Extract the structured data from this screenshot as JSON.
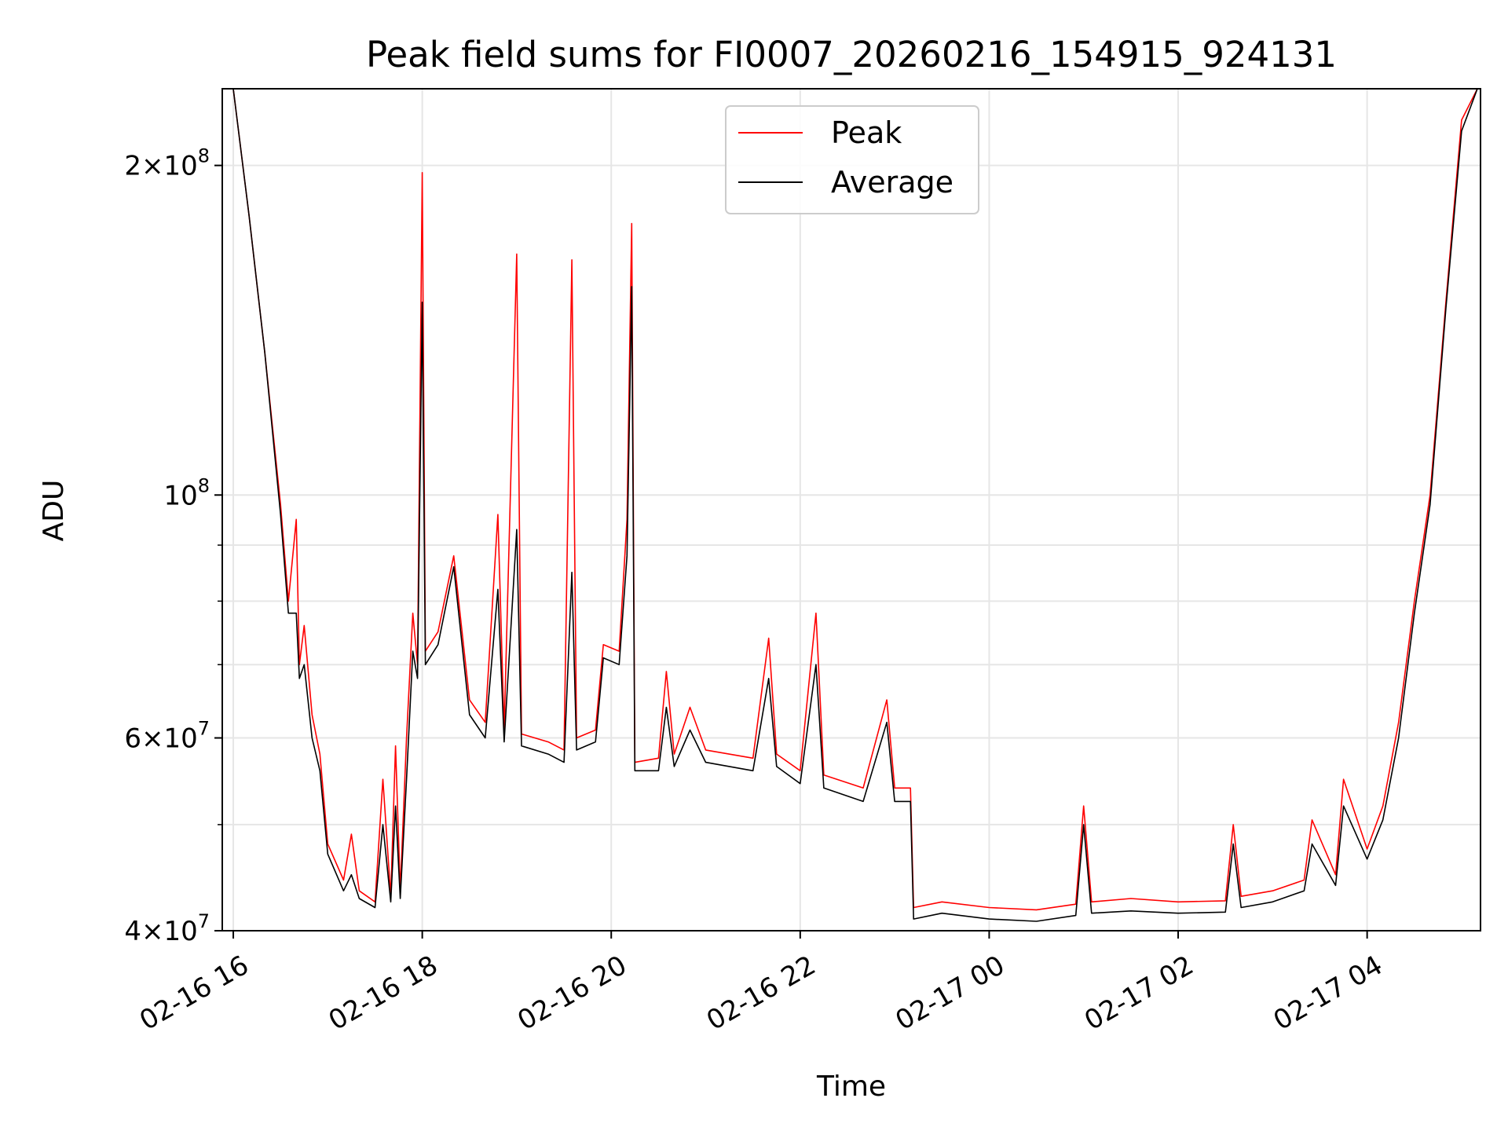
{
  "chart_data": {
    "type": "line",
    "title": "Peak field sums for FI0007_20260216_154915_924131",
    "xlabel": "Time",
    "ylabel": "ADU",
    "yscale": "log",
    "ylim": [
      40000000,
      235000000
    ],
    "xlim": [
      "2026-02-16 15:53",
      "2026-02-17 05:12"
    ],
    "grid": true,
    "legend_position": "top-center",
    "x_ticks": [
      {
        "x": "2026-02-16 16:00",
        "label": "02-16 16"
      },
      {
        "x": "2026-02-16 18:00",
        "label": "02-16 18"
      },
      {
        "x": "2026-02-16 20:00",
        "label": "02-16 20"
      },
      {
        "x": "2026-02-16 22:00",
        "label": "02-16 22"
      },
      {
        "x": "2026-02-17 00:00",
        "label": "02-17 00"
      },
      {
        "x": "2026-02-17 02:00",
        "label": "02-17 02"
      },
      {
        "x": "2026-02-17 04:00",
        "label": "02-17 04"
      }
    ],
    "y_major_ticks": [
      {
        "value": 40000000,
        "mant": "4",
        "exp": "7"
      },
      {
        "value": 60000000,
        "mant": "6",
        "exp": "7"
      },
      {
        "value": 100000000,
        "mant": "",
        "exp": "8"
      },
      {
        "value": 200000000,
        "mant": "2",
        "exp": "8"
      }
    ],
    "y_minor_ticks": [
      50000000,
      70000000,
      80000000,
      90000000
    ],
    "series": [
      {
        "name": "Peak",
        "color": "#ff0000",
        "points": [
          [
            "2026-02-16 16:00",
            235000000
          ],
          [
            "2026-02-16 16:10",
            180000000
          ],
          [
            "2026-02-16 16:20",
            135000000
          ],
          [
            "2026-02-16 16:30",
            98000000
          ],
          [
            "2026-02-16 16:35",
            80000000
          ],
          [
            "2026-02-16 16:40",
            95000000
          ],
          [
            "2026-02-16 16:42",
            70000000
          ],
          [
            "2026-02-16 16:45",
            76000000
          ],
          [
            "2026-02-16 16:50",
            63000000
          ],
          [
            "2026-02-16 16:55",
            58000000
          ],
          [
            "2026-02-16 17:00",
            48000000
          ],
          [
            "2026-02-16 17:10",
            44500000
          ],
          [
            "2026-02-16 17:15",
            49000000
          ],
          [
            "2026-02-16 17:20",
            43500000
          ],
          [
            "2026-02-16 17:30",
            42500000
          ],
          [
            "2026-02-16 17:35",
            55000000
          ],
          [
            "2026-02-16 17:40",
            43000000
          ],
          [
            "2026-02-16 17:43",
            59000000
          ],
          [
            "2026-02-16 17:46",
            43500000
          ],
          [
            "2026-02-16 17:50",
            60000000
          ],
          [
            "2026-02-16 17:54",
            78000000
          ],
          [
            "2026-02-16 17:57",
            70000000
          ],
          [
            "2026-02-16 18:00",
            197000000
          ],
          [
            "2026-02-16 18:02",
            72000000
          ],
          [
            "2026-02-16 18:10",
            75000000
          ],
          [
            "2026-02-16 18:20",
            88000000
          ],
          [
            "2026-02-16 18:30",
            65000000
          ],
          [
            "2026-02-16 18:40",
            62000000
          ],
          [
            "2026-02-16 18:48",
            96000000
          ],
          [
            "2026-02-16 18:52",
            61000000
          ],
          [
            "2026-02-16 19:00",
            166000000
          ],
          [
            "2026-02-16 19:03",
            60500000
          ],
          [
            "2026-02-16 19:20",
            59500000
          ],
          [
            "2026-02-16 19:30",
            58500000
          ],
          [
            "2026-02-16 19:35",
            164000000
          ],
          [
            "2026-02-16 19:38",
            60000000
          ],
          [
            "2026-02-16 19:50",
            61000000
          ],
          [
            "2026-02-16 19:55",
            73000000
          ],
          [
            "2026-02-16 20:05",
            72000000
          ],
          [
            "2026-02-16 20:10",
            95000000
          ],
          [
            "2026-02-16 20:13",
            177000000
          ],
          [
            "2026-02-16 20:15",
            57000000
          ],
          [
            "2026-02-16 20:30",
            57500000
          ],
          [
            "2026-02-16 20:35",
            69000000
          ],
          [
            "2026-02-16 20:40",
            58000000
          ],
          [
            "2026-02-16 20:50",
            64000000
          ],
          [
            "2026-02-16 21:00",
            58500000
          ],
          [
            "2026-02-16 21:30",
            57500000
          ],
          [
            "2026-02-16 21:40",
            74000000
          ],
          [
            "2026-02-16 21:45",
            58000000
          ],
          [
            "2026-02-16 22:00",
            56000000
          ],
          [
            "2026-02-16 22:10",
            78000000
          ],
          [
            "2026-02-16 22:15",
            55500000
          ],
          [
            "2026-02-16 22:40",
            54000000
          ],
          [
            "2026-02-16 22:55",
            65000000
          ],
          [
            "2026-02-16 23:00",
            54000000
          ],
          [
            "2026-02-16 23:10",
            54000000
          ],
          [
            "2026-02-16 23:12",
            42000000
          ],
          [
            "2026-02-16 23:30",
            42500000
          ],
          [
            "2026-02-17 00:00",
            42000000
          ],
          [
            "2026-02-17 00:30",
            41800000
          ],
          [
            "2026-02-17 00:55",
            42300000
          ],
          [
            "2026-02-17 01:00",
            52000000
          ],
          [
            "2026-02-17 01:05",
            42500000
          ],
          [
            "2026-02-17 01:30",
            42800000
          ],
          [
            "2026-02-17 02:00",
            42500000
          ],
          [
            "2026-02-17 02:30",
            42600000
          ],
          [
            "2026-02-17 02:35",
            50000000
          ],
          [
            "2026-02-17 02:40",
            43000000
          ],
          [
            "2026-02-17 03:00",
            43500000
          ],
          [
            "2026-02-17 03:20",
            44500000
          ],
          [
            "2026-02-17 03:25",
            50500000
          ],
          [
            "2026-02-17 03:40",
            45000000
          ],
          [
            "2026-02-17 03:45",
            55000000
          ],
          [
            "2026-02-17 04:00",
            47500000
          ],
          [
            "2026-02-17 04:10",
            52000000
          ],
          [
            "2026-02-17 04:20",
            62000000
          ],
          [
            "2026-02-17 04:30",
            80000000
          ],
          [
            "2026-02-17 04:40",
            100000000
          ],
          [
            "2026-02-17 04:50",
            150000000
          ],
          [
            "2026-02-17 05:00",
            220000000
          ],
          [
            "2026-02-17 05:10",
            235000000
          ]
        ]
      },
      {
        "name": "Average",
        "color": "#000000",
        "points": [
          [
            "2026-02-16 16:00",
            235000000
          ],
          [
            "2026-02-16 16:10",
            180000000
          ],
          [
            "2026-02-16 16:20",
            135000000
          ],
          [
            "2026-02-16 16:30",
            96000000
          ],
          [
            "2026-02-16 16:35",
            78000000
          ],
          [
            "2026-02-16 16:40",
            78000000
          ],
          [
            "2026-02-16 16:42",
            68000000
          ],
          [
            "2026-02-16 16:45",
            70000000
          ],
          [
            "2026-02-16 16:50",
            60000000
          ],
          [
            "2026-02-16 16:55",
            56000000
          ],
          [
            "2026-02-16 17:00",
            47000000
          ],
          [
            "2026-02-16 17:10",
            43500000
          ],
          [
            "2026-02-16 17:15",
            45000000
          ],
          [
            "2026-02-16 17:20",
            42800000
          ],
          [
            "2026-02-16 17:30",
            42000000
          ],
          [
            "2026-02-16 17:35",
            50000000
          ],
          [
            "2026-02-16 17:40",
            42500000
          ],
          [
            "2026-02-16 17:43",
            52000000
          ],
          [
            "2026-02-16 17:46",
            42800000
          ],
          [
            "2026-02-16 17:50",
            55000000
          ],
          [
            "2026-02-16 17:54",
            72000000
          ],
          [
            "2026-02-16 17:57",
            68000000
          ],
          [
            "2026-02-16 18:00",
            150000000
          ],
          [
            "2026-02-16 18:02",
            70000000
          ],
          [
            "2026-02-16 18:10",
            73000000
          ],
          [
            "2026-02-16 18:20",
            86000000
          ],
          [
            "2026-02-16 18:30",
            63000000
          ],
          [
            "2026-02-16 18:40",
            60000000
          ],
          [
            "2026-02-16 18:48",
            82000000
          ],
          [
            "2026-02-16 18:52",
            59500000
          ],
          [
            "2026-02-16 19:00",
            93000000
          ],
          [
            "2026-02-16 19:03",
            59000000
          ],
          [
            "2026-02-16 19:20",
            58000000
          ],
          [
            "2026-02-16 19:30",
            57000000
          ],
          [
            "2026-02-16 19:35",
            85000000
          ],
          [
            "2026-02-16 19:38",
            58500000
          ],
          [
            "2026-02-16 19:50",
            59500000
          ],
          [
            "2026-02-16 19:55",
            71000000
          ],
          [
            "2026-02-16 20:05",
            70000000
          ],
          [
            "2026-02-16 20:10",
            88000000
          ],
          [
            "2026-02-16 20:13",
            155000000
          ],
          [
            "2026-02-16 20:15",
            56000000
          ],
          [
            "2026-02-16 20:30",
            56000000
          ],
          [
            "2026-02-16 20:35",
            64000000
          ],
          [
            "2026-02-16 20:40",
            56500000
          ],
          [
            "2026-02-16 20:50",
            61000000
          ],
          [
            "2026-02-16 21:00",
            57000000
          ],
          [
            "2026-02-16 21:30",
            56000000
          ],
          [
            "2026-02-16 21:40",
            68000000
          ],
          [
            "2026-02-16 21:45",
            56500000
          ],
          [
            "2026-02-16 22:00",
            54500000
          ],
          [
            "2026-02-16 22:10",
            70000000
          ],
          [
            "2026-02-16 22:15",
            54000000
          ],
          [
            "2026-02-16 22:40",
            52500000
          ],
          [
            "2026-02-16 22:55",
            62000000
          ],
          [
            "2026-02-16 23:00",
            52500000
          ],
          [
            "2026-02-16 23:10",
            52500000
          ],
          [
            "2026-02-16 23:12",
            41000000
          ],
          [
            "2026-02-16 23:30",
            41500000
          ],
          [
            "2026-02-17 00:00",
            41000000
          ],
          [
            "2026-02-17 00:30",
            40800000
          ],
          [
            "2026-02-17 00:55",
            41300000
          ],
          [
            "2026-02-17 01:00",
            50000000
          ],
          [
            "2026-02-17 01:05",
            41500000
          ],
          [
            "2026-02-17 01:30",
            41700000
          ],
          [
            "2026-02-17 02:00",
            41500000
          ],
          [
            "2026-02-17 02:30",
            41600000
          ],
          [
            "2026-02-17 02:35",
            48000000
          ],
          [
            "2026-02-17 02:40",
            42000000
          ],
          [
            "2026-02-17 03:00",
            42500000
          ],
          [
            "2026-02-17 03:20",
            43500000
          ],
          [
            "2026-02-17 03:25",
            48000000
          ],
          [
            "2026-02-17 03:40",
            44000000
          ],
          [
            "2026-02-17 03:45",
            52000000
          ],
          [
            "2026-02-17 04:00",
            46500000
          ],
          [
            "2026-02-17 04:10",
            50500000
          ],
          [
            "2026-02-17 04:20",
            60000000
          ],
          [
            "2026-02-17 04:30",
            78000000
          ],
          [
            "2026-02-17 04:40",
            98000000
          ],
          [
            "2026-02-17 04:50",
            148000000
          ],
          [
            "2026-02-17 05:00",
            215000000
          ],
          [
            "2026-02-17 05:10",
            235000000
          ]
        ]
      }
    ]
  }
}
